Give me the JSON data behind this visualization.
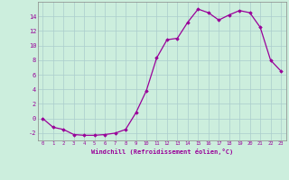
{
  "x": [
    0,
    1,
    2,
    3,
    4,
    5,
    6,
    7,
    8,
    9,
    10,
    11,
    12,
    13,
    14,
    15,
    16,
    17,
    18,
    19,
    20,
    21,
    22,
    23
  ],
  "y": [
    0.0,
    -1.2,
    -1.5,
    -2.2,
    -2.3,
    -2.3,
    -2.2,
    -2.0,
    -1.5,
    0.8,
    3.8,
    8.3,
    10.8,
    11.0,
    13.2,
    15.0,
    14.5,
    13.5,
    14.2,
    14.8,
    14.5,
    12.5,
    8.0,
    6.5
  ],
  "xlabel": "Windchill (Refroidissement éolien,°C)",
  "ylim": [
    -3,
    16
  ],
  "yticks": [
    -2,
    0,
    2,
    4,
    6,
    8,
    10,
    12,
    14
  ],
  "xticks": [
    0,
    1,
    2,
    3,
    4,
    5,
    6,
    7,
    8,
    9,
    10,
    11,
    12,
    13,
    14,
    15,
    16,
    17,
    18,
    19,
    20,
    21,
    22,
    23
  ],
  "line_color": "#990099",
  "marker": "D",
  "marker_size": 1.8,
  "bg_color": "#cceedd",
  "grid_color": "#aacccc",
  "text_color": "#990099"
}
